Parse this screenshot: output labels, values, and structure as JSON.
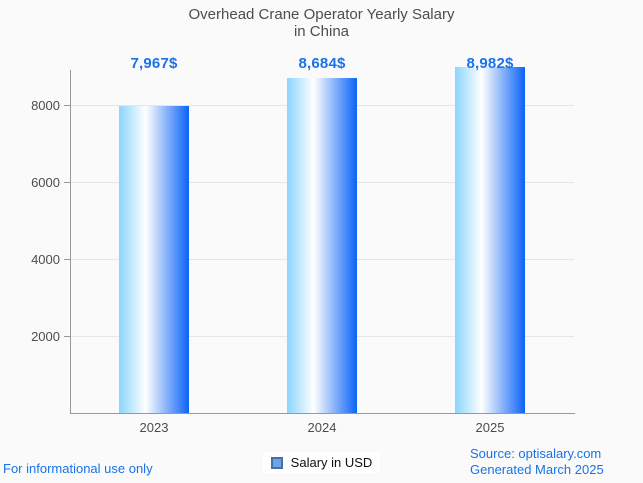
{
  "chart_data": {
    "type": "bar",
    "title": "Overhead Crane Operator Yearly Salary",
    "subtitle": "in China",
    "categories": [
      "2023",
      "2024",
      "2025"
    ],
    "series": [
      {
        "name": "Salary in USD",
        "values": [
          7967,
          8684,
          8982
        ]
      }
    ],
    "value_labels": [
      "7,967$",
      "8,684$",
      "8,982$"
    ],
    "xlabel": "",
    "ylabel": "",
    "ylim": [
      0,
      8900
    ],
    "yticks": [
      2000,
      4000,
      6000,
      8000
    ],
    "grid": true,
    "legend_position": "bottom"
  },
  "legend": {
    "label": "Salary in USD"
  },
  "footer": {
    "left": "For informational use only",
    "source_line1": "Source: optisalary.com",
    "source_line2": "Generated March 2025"
  },
  "colors": {
    "accent_blue": "#1a73e8",
    "text_gray": "#4d4d4d",
    "axis_line": "#999999",
    "gridline": "#e6e6e6",
    "background": "#fafafa",
    "bar_gradient_left": "#8bd5fe",
    "bar_gradient_mid": "#ffffff",
    "bar_gradient_right": "#0b63f6",
    "legend_fill": "#6da3e8",
    "legend_border": "#47729f"
  }
}
